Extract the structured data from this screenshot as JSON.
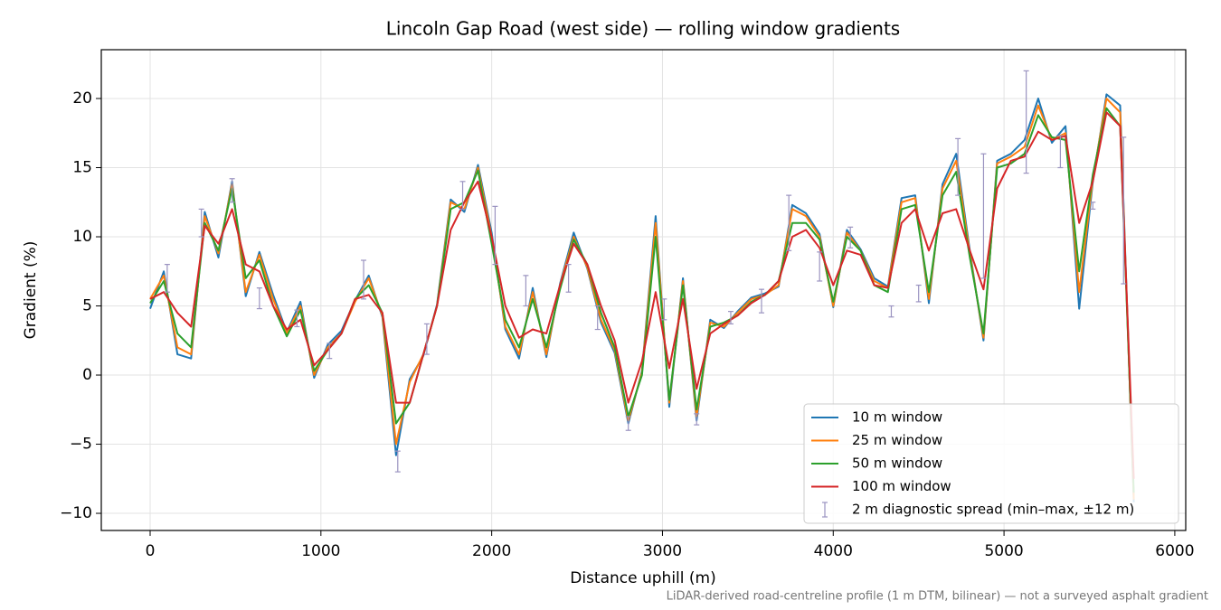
{
  "chart_data": {
    "type": "line",
    "title": "Lincoln Gap Road (west side) — rolling window gradients",
    "xlabel": "Distance uphill (m)",
    "ylabel": "Gradient (%)",
    "note": "LiDAR-derived road-centreline profile (1 m DTM, bilinear) — not a surveyed asphalt gradient",
    "xlim": [
      -286,
      6064
    ],
    "ylim": [
      -11.24,
      23.53
    ],
    "xticks": [
      0,
      1000,
      2000,
      3000,
      4000,
      5000,
      6000
    ],
    "yticks": [
      {
        "value": -10,
        "label": "−10"
      },
      {
        "value": -5,
        "label": "−5"
      },
      0,
      5,
      10,
      15,
      20
    ],
    "grid": true,
    "legend": "lower right",
    "x": [
      0,
      80,
      160,
      240,
      320,
      400,
      480,
      560,
      640,
      720,
      800,
      880,
      960,
      1040,
      1120,
      1200,
      1280,
      1360,
      1440,
      1520,
      1600,
      1680,
      1760,
      1840,
      1920,
      2000,
      2080,
      2160,
      2240,
      2320,
      2400,
      2480,
      2560,
      2640,
      2720,
      2800,
      2880,
      2960,
      3040,
      3120,
      3200,
      3280,
      3360,
      3440,
      3520,
      3600,
      3680,
      3760,
      3840,
      3920,
      4000,
      4080,
      4160,
      4240,
      4320,
      4400,
      4480,
      4560,
      4640,
      4720,
      4800,
      4880,
      4960,
      5040,
      5120,
      5200,
      5280,
      5360,
      5440,
      5520,
      5600,
      5680,
      5760
    ],
    "series": [
      {
        "name": "10 m window",
        "color": "#1f77b4",
        "values": [
          4.8,
          7.5,
          1.5,
          1.2,
          11.8,
          8.5,
          14,
          5.7,
          8.9,
          5.8,
          3.1,
          5.3,
          -0.2,
          2.2,
          3.2,
          5.4,
          7.2,
          4.2,
          -5.8,
          -0.3,
          1.4,
          5.1,
          12.7,
          11.8,
          15.2,
          10.3,
          3.3,
          1.2,
          6.3,
          1.3,
          6.6,
          10.3,
          7.7,
          3.8,
          1.6,
          -3.5,
          0.3,
          11.5,
          -2.3,
          7,
          -3.3,
          4,
          3.4,
          4.6,
          5.6,
          5.9,
          6.4,
          12.3,
          11.7,
          10.2,
          4.9,
          10.5,
          9.1,
          7,
          6.4,
          12.8,
          13,
          5.2,
          13.8,
          16,
          9,
          2.5,
          15.5,
          16,
          17,
          20,
          16.8,
          18,
          4.8,
          14,
          20.3,
          19.5,
          -9.2
        ]
      },
      {
        "name": "25 m window",
        "color": "#ff7f0e",
        "values": [
          5.5,
          7.2,
          2,
          1.5,
          11.5,
          8.8,
          13.8,
          6,
          8.7,
          5.5,
          3,
          5,
          0,
          2,
          3,
          5.3,
          7,
          4.3,
          -5,
          -0.5,
          1.5,
          5,
          12.5,
          12,
          15,
          10,
          3.5,
          1.5,
          6,
          1.5,
          6.5,
          10,
          7.8,
          4,
          1.8,
          -3.3,
          0.2,
          11,
          -2,
          6.8,
          -3,
          3.8,
          3.5,
          4.5,
          5.5,
          5.8,
          6.5,
          12,
          11.5,
          10,
          5,
          10.3,
          9,
          6.8,
          6.3,
          12.5,
          12.8,
          5.5,
          13.5,
          15.5,
          8.8,
          2.7,
          15.3,
          15.8,
          16.5,
          19.5,
          17,
          17.5,
          6,
          14.2,
          20,
          19,
          -9
        ]
      },
      {
        "name": "50 m window",
        "color": "#2ca02c",
        "values": [
          5.2,
          6.8,
          3,
          2,
          11,
          9,
          13.5,
          7,
          8.3,
          5,
          2.8,
          4.7,
          0.3,
          1.8,
          3,
          5.5,
          6.5,
          4.5,
          -3.5,
          -2,
          1.5,
          5,
          12,
          12.5,
          14.8,
          9.5,
          4,
          2,
          5.5,
          2,
          6.2,
          9.8,
          8,
          4.5,
          2,
          -3,
          0,
          10,
          -1.8,
          6.5,
          -2.5,
          3.5,
          3.8,
          4.3,
          5.3,
          5.8,
          6.8,
          11,
          11,
          9.8,
          5.3,
          10,
          9,
          6.5,
          6,
          12,
          12.3,
          6,
          13,
          14.7,
          8.5,
          3,
          15,
          15.3,
          16,
          18.8,
          17.2,
          17,
          7.5,
          14.5,
          19.3,
          18,
          -8.5
        ]
      },
      {
        "name": "100 m window",
        "color": "#d62728",
        "values": [
          5.5,
          6,
          4.5,
          3.5,
          10.8,
          9.5,
          12,
          8,
          7.5,
          5,
          3.3,
          4,
          0.7,
          1.8,
          3,
          5.5,
          5.8,
          4.5,
          -2,
          -2,
          1.5,
          5,
          10.5,
          12.5,
          14,
          10,
          5,
          2.7,
          3.3,
          3,
          6.5,
          9.5,
          8,
          5,
          2.5,
          -2,
          1,
          6,
          0.5,
          5.5,
          -1,
          3,
          3.7,
          4.3,
          5.2,
          5.8,
          6.8,
          10,
          10.5,
          9.2,
          6.5,
          9,
          8.7,
          6.5,
          6.3,
          11,
          12,
          9,
          11.7,
          12,
          9,
          6.2,
          13.5,
          15.5,
          15.8,
          17.6,
          17,
          17.3,
          11,
          14,
          19,
          18,
          -7.5
        ]
      }
    ],
    "errorbars": {
      "name": "2 m diagnostic spread (min–max, ±12 m)",
      "color": "#9a93c0",
      "x": [
        100,
        300,
        480,
        640,
        860,
        1050,
        1250,
        1450,
        1620,
        1830,
        2020,
        2200,
        2450,
        2620,
        2800,
        3010,
        3200,
        3400,
        3580,
        3740,
        3920,
        4100,
        4340,
        4500,
        4730,
        4880,
        5130,
        5330,
        5520,
        5700
      ],
      "low": [
        6,
        10,
        12.5,
        4.8,
        3.5,
        1.2,
        5.5,
        -7,
        1.5,
        12,
        8,
        5,
        6,
        3.3,
        -4,
        4,
        -3.6,
        3.7,
        4.5,
        9,
        6.8,
        9.2,
        4.2,
        5.3,
        13,
        7,
        14.6,
        15,
        12,
        6.6
      ],
      "high": [
        8,
        12,
        14.2,
        6.3,
        4.7,
        2.3,
        8.3,
        -5.5,
        3.7,
        14,
        12.2,
        7.2,
        8,
        5,
        -3,
        5.5,
        -2.8,
        4.6,
        6.2,
        13,
        8.9,
        10.7,
        5,
        6.5,
        17.1,
        16,
        22,
        17.3,
        12.5,
        17.2
      ]
    }
  }
}
